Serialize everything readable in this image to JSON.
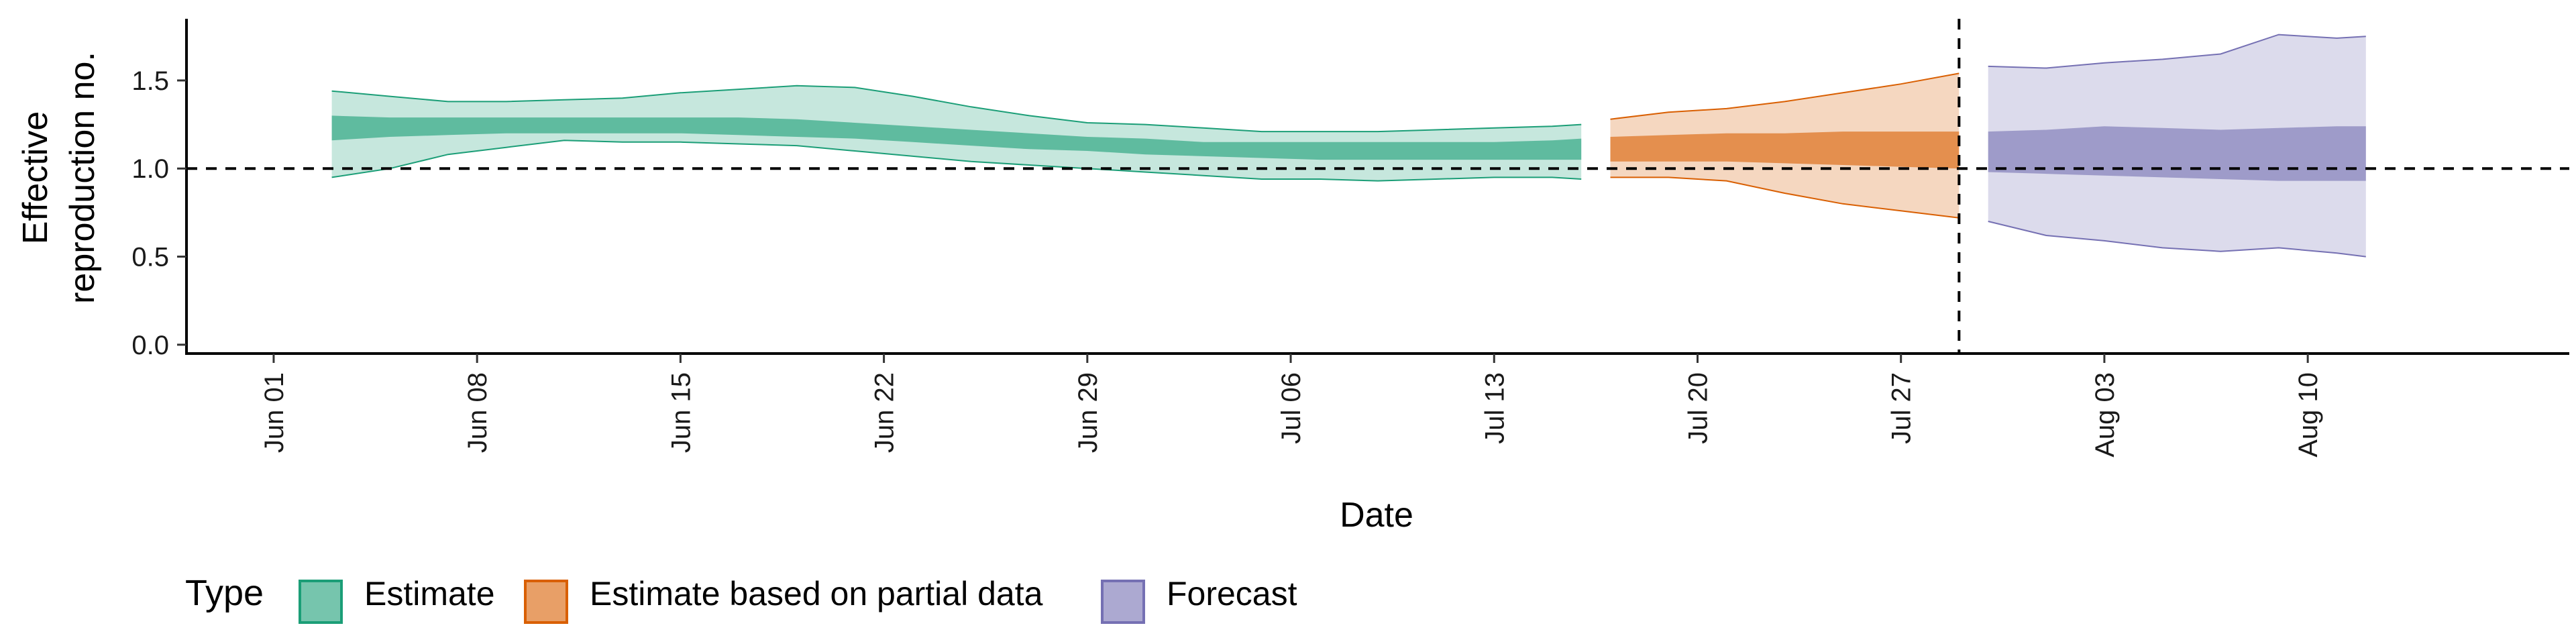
{
  "chart_data": {
    "type": "area",
    "xlabel": "Date",
    "ylabel_lines": [
      "Effective",
      "reproduction no."
    ],
    "x_domain": [
      "2021-05-29",
      "2021-08-19"
    ],
    "ylim": [
      -0.05,
      1.85
    ],
    "y_ticks": [
      0.0,
      0.5,
      1.0,
      1.5
    ],
    "y_tick_labels": [
      "0.0",
      "0.5",
      "1.0",
      "1.5"
    ],
    "x_ticks": [
      "2021-06-01",
      "2021-06-08",
      "2021-06-15",
      "2021-06-22",
      "2021-06-29",
      "2021-07-06",
      "2021-07-13",
      "2021-07-20",
      "2021-07-27",
      "2021-08-03",
      "2021-08-10"
    ],
    "x_tick_labels": [
      "Jun 01",
      "Jun 08",
      "Jun 15",
      "Jun 22",
      "Jun 29",
      "Jul 06",
      "Jul 13",
      "Jul 20",
      "Jul 27",
      "Aug 03",
      "Aug 10"
    ],
    "reference_line_y": 1.0,
    "forecast_start": "2021-07-29",
    "grid": false,
    "legend": {
      "title": "Type",
      "position": "bottom",
      "entries": [
        {
          "label": "Estimate",
          "color": "#1b9e77"
        },
        {
          "label": "Estimate based on partial data",
          "color": "#d95f02"
        },
        {
          "label": "Forecast",
          "color": "#7570b3"
        }
      ]
    },
    "series": [
      {
        "name": "Estimate",
        "color": "#1b9e77",
        "x": [
          "2021-06-03",
          "2021-06-05",
          "2021-06-07",
          "2021-06-09",
          "2021-06-11",
          "2021-06-13",
          "2021-06-15",
          "2021-06-17",
          "2021-06-19",
          "2021-06-21",
          "2021-06-23",
          "2021-06-25",
          "2021-06-27",
          "2021-06-29",
          "2021-07-01",
          "2021-07-03",
          "2021-07-05",
          "2021-07-07",
          "2021-07-09",
          "2021-07-11",
          "2021-07-13",
          "2021-07-15",
          "2021-07-16"
        ],
        "outer_upper": [
          1.44,
          1.41,
          1.38,
          1.38,
          1.39,
          1.4,
          1.43,
          1.45,
          1.47,
          1.46,
          1.41,
          1.35,
          1.3,
          1.26,
          1.25,
          1.23,
          1.21,
          1.21,
          1.21,
          1.22,
          1.23,
          1.24,
          1.25
        ],
        "outer_lower": [
          0.95,
          1.0,
          1.08,
          1.12,
          1.16,
          1.15,
          1.15,
          1.14,
          1.13,
          1.1,
          1.07,
          1.04,
          1.02,
          1.0,
          0.98,
          0.96,
          0.94,
          0.94,
          0.93,
          0.94,
          0.95,
          0.95,
          0.94
        ],
        "inner_upper": [
          1.3,
          1.29,
          1.29,
          1.29,
          1.29,
          1.29,
          1.29,
          1.29,
          1.28,
          1.26,
          1.24,
          1.22,
          1.2,
          1.18,
          1.17,
          1.15,
          1.15,
          1.15,
          1.15,
          1.15,
          1.15,
          1.16,
          1.17
        ],
        "inner_lower": [
          1.16,
          1.18,
          1.19,
          1.2,
          1.2,
          1.2,
          1.2,
          1.19,
          1.18,
          1.17,
          1.15,
          1.13,
          1.11,
          1.1,
          1.08,
          1.07,
          1.06,
          1.05,
          1.05,
          1.05,
          1.05,
          1.05,
          1.05
        ]
      },
      {
        "name": "Estimate based on partial data",
        "color": "#d95f02",
        "x": [
          "2021-07-17",
          "2021-07-19",
          "2021-07-21",
          "2021-07-23",
          "2021-07-25",
          "2021-07-27",
          "2021-07-29"
        ],
        "outer_upper": [
          1.28,
          1.32,
          1.34,
          1.38,
          1.43,
          1.48,
          1.54
        ],
        "outer_lower": [
          0.95,
          0.95,
          0.93,
          0.86,
          0.8,
          0.76,
          0.72
        ],
        "inner_upper": [
          1.18,
          1.19,
          1.2,
          1.2,
          1.21,
          1.21,
          1.21
        ],
        "inner_lower": [
          1.04,
          1.04,
          1.04,
          1.03,
          1.02,
          1.01,
          1.0
        ]
      },
      {
        "name": "Forecast",
        "color": "#7570b3",
        "x": [
          "2021-07-30",
          "2021-08-01",
          "2021-08-03",
          "2021-08-05",
          "2021-08-07",
          "2021-08-09",
          "2021-08-11",
          "2021-08-12"
        ],
        "outer_upper": [
          1.58,
          1.57,
          1.6,
          1.62,
          1.65,
          1.76,
          1.74,
          1.75
        ],
        "outer_lower": [
          0.7,
          0.62,
          0.59,
          0.55,
          0.53,
          0.55,
          0.52,
          0.5
        ],
        "inner_upper": [
          1.21,
          1.22,
          1.24,
          1.23,
          1.22,
          1.23,
          1.24,
          1.24
        ],
        "inner_lower": [
          0.98,
          0.97,
          0.96,
          0.95,
          0.94,
          0.93,
          0.93,
          0.93
        ]
      }
    ]
  }
}
